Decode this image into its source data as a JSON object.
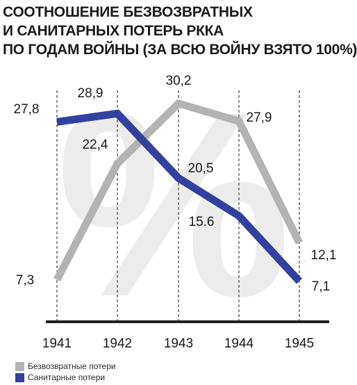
{
  "title": {
    "line1": "СООТНОШЕНИЕ БЕЗВОЗВРАТНЫХ",
    "line2": "И САНИТАРНЫХ ПОТЕРЬ РККА",
    "line3": "ПО ГОДАМ ВОЙНЫ (ЗА ВСЮ ВОЙНУ ВЗЯТО 100%)"
  },
  "watermark": "%",
  "colors": {
    "irrecoverable": "#b3b3b3",
    "sanitary": "#3340a0",
    "axis": "#231f20",
    "watermark": "#ececec"
  },
  "chart_data": {
    "type": "line",
    "title": "СООТНОШЕНИЕ БЕЗВОЗВРАТНЫХ И САНИТАРНЫХ ПОТЕРЬ РККА ПО ГОДАМ ВОЙНЫ (ЗА ВСЮ ВОЙНУ ВЗЯТО 100%)",
    "categories": [
      "1941",
      "1942",
      "1943",
      "1944",
      "1945"
    ],
    "series": [
      {
        "name": "Безвозвратные потери",
        "values": [
          7.3,
          22.4,
          30.2,
          27.9,
          12.1
        ],
        "labels": [
          "7,3",
          "22,4",
          "30,2",
          "27,9",
          "12,1"
        ],
        "color": "#b3b3b3"
      },
      {
        "name": "Санитарные потери",
        "values": [
          27.8,
          28.9,
          20.5,
          15.6,
          7.1
        ],
        "labels": [
          "27,8",
          "28,9",
          "20,5",
          "15.6",
          "7,1"
        ],
        "color": "#3340a0"
      }
    ],
    "xlabel": "",
    "ylabel": "",
    "ylim": [
      5,
      31
    ],
    "grid": "vertical dashed",
    "legend": "bottom-left"
  }
}
